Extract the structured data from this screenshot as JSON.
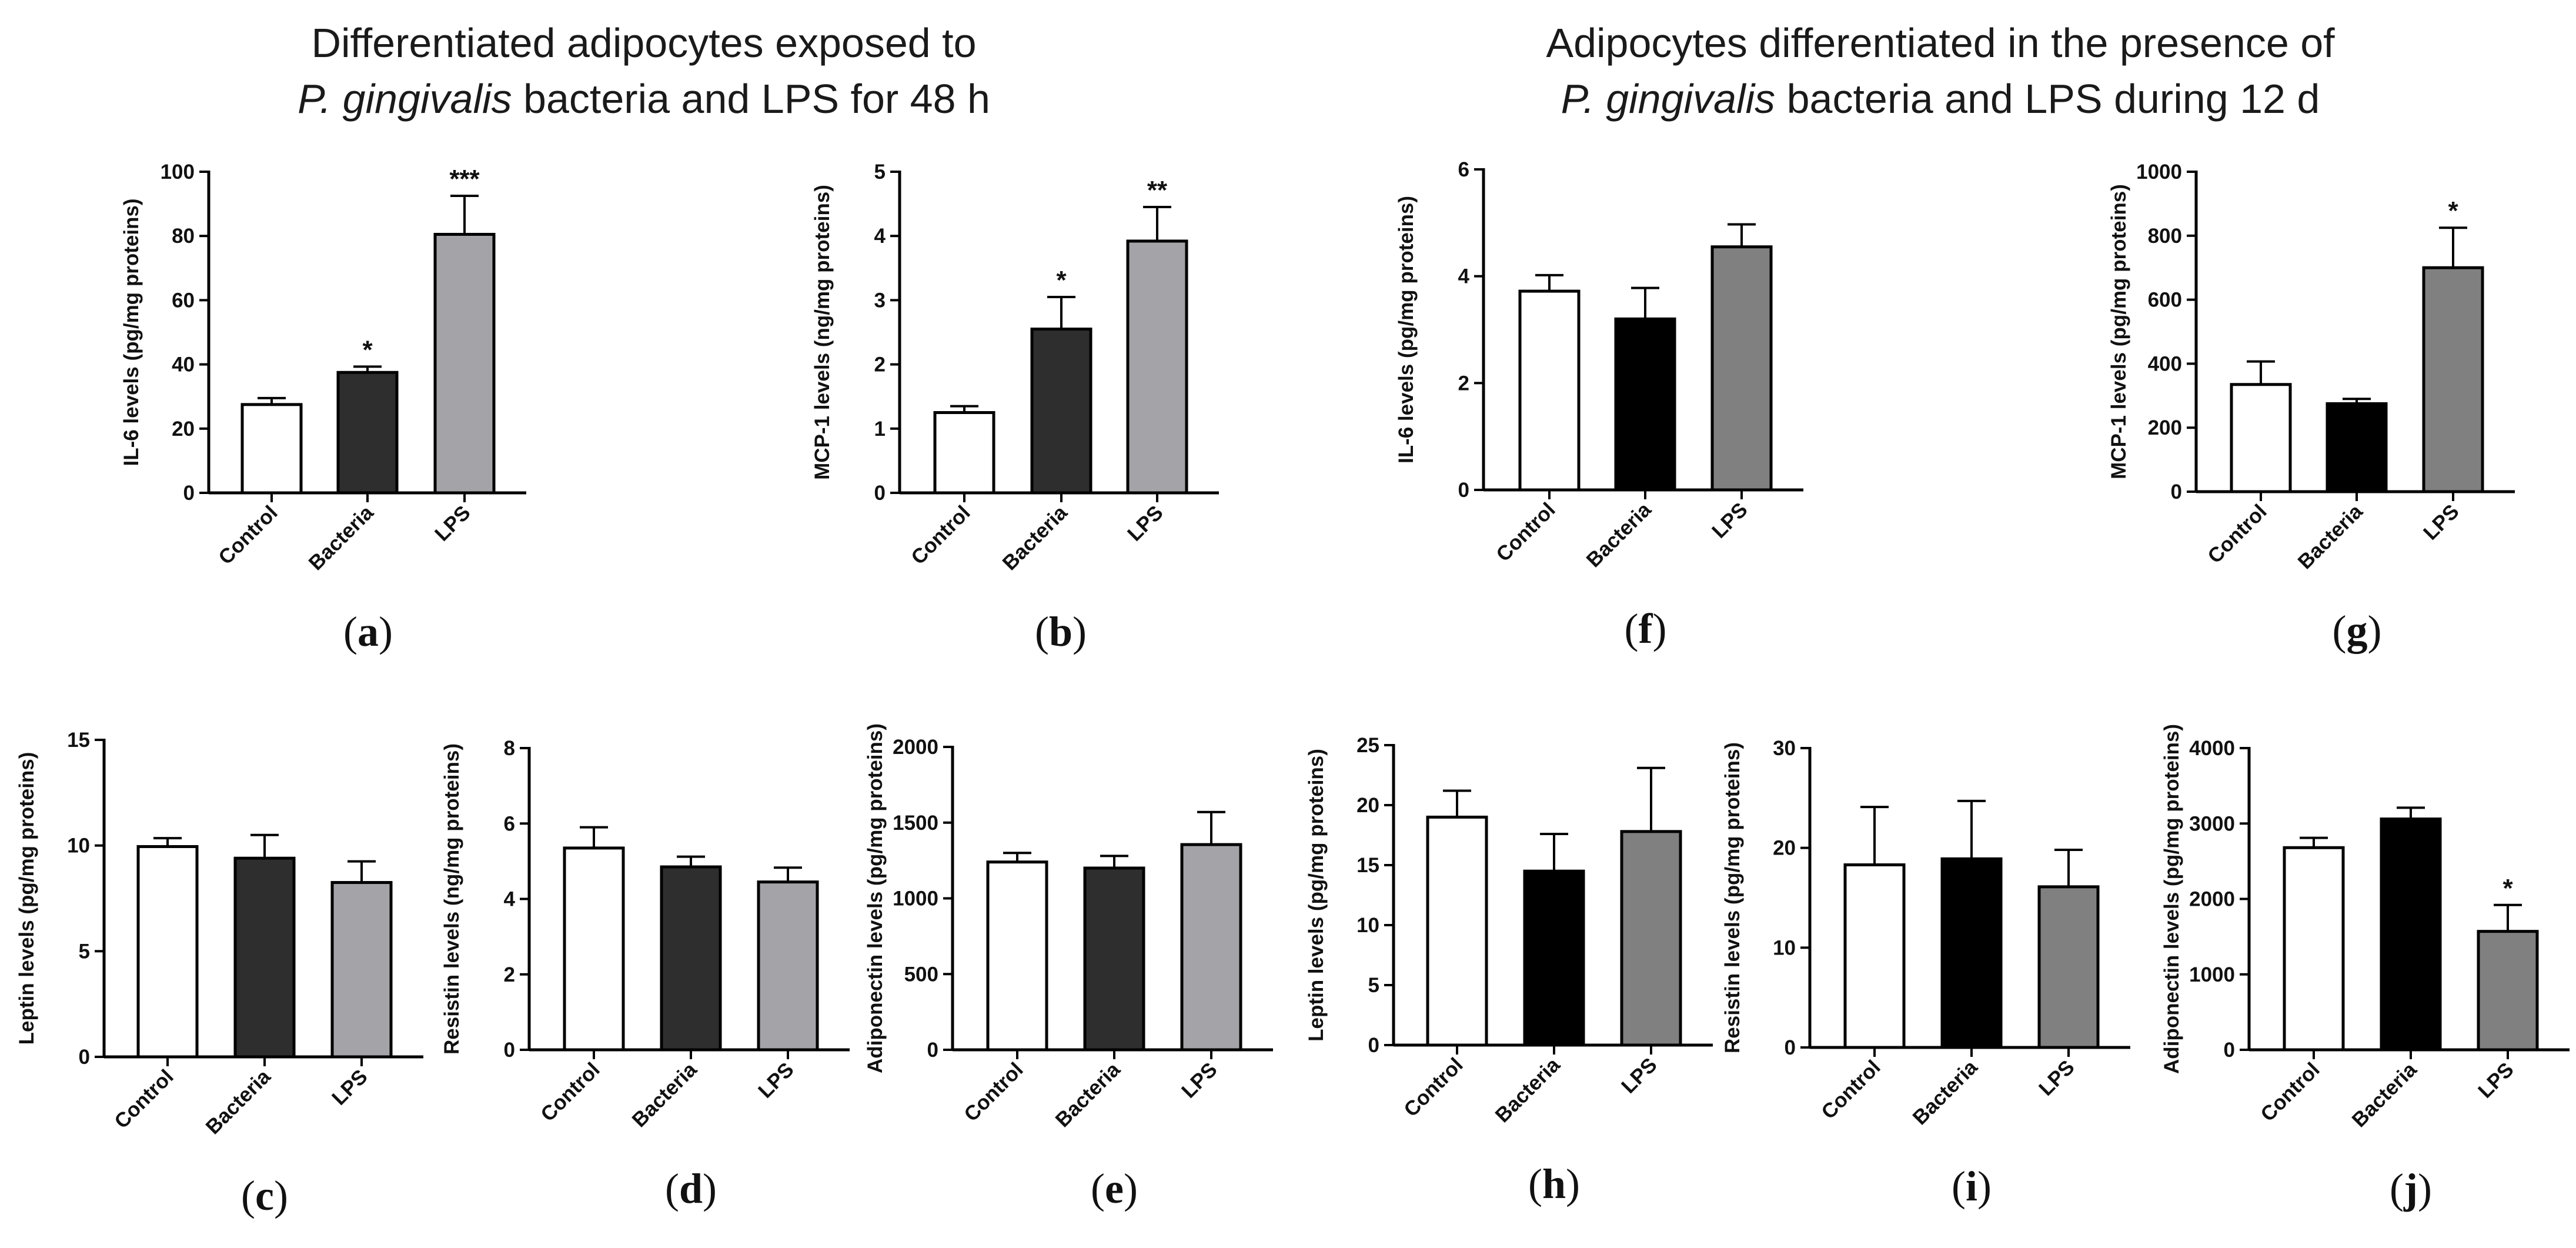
{
  "headings": [
    {
      "line1": "Differentiated adipocytes exposed to",
      "line2_italic": "P. gingivalis",
      "line2_rest": " bacteria and LPS for 48 h"
    },
    {
      "line1": "Adipocytes differentiated in the presence of",
      "line2_italic": "P. gingivalis",
      "line2_rest": " bacteria and LPS during 12 d"
    }
  ],
  "colors": {
    "group1": [
      "#ffffff",
      "#2e2e2e",
      "#a4a4a8"
    ],
    "group2": [
      "#ffffff",
      "#000000",
      "#808080"
    ],
    "axis": "#000000"
  },
  "chart_data": [
    {
      "id": "a",
      "type": "bar",
      "ylabel": "IL-6 levels (pg/mg proteins)",
      "categories": [
        "Control",
        "Bacteria",
        "LPS"
      ],
      "values": [
        27.5,
        37.5,
        80.5
      ],
      "errors": [
        2,
        1.8,
        12
      ],
      "ylim": [
        0,
        100
      ],
      "yticks": [
        0,
        20,
        40,
        60,
        80,
        100
      ],
      "annotations": [
        "",
        "*",
        "***"
      ],
      "panel_label": "a",
      "color_set": "group1"
    },
    {
      "id": "b",
      "type": "bar",
      "ylabel": "MCP-1 levels (ng/mg proteins)",
      "categories": [
        "Control",
        "Bacteria",
        "LPS"
      ],
      "values": [
        1.25,
        2.55,
        3.92
      ],
      "errors": [
        0.1,
        0.5,
        0.53
      ],
      "ylim": [
        0,
        5
      ],
      "yticks": [
        0,
        1,
        2,
        3,
        4,
        5
      ],
      "annotations": [
        "",
        "*",
        "**"
      ],
      "panel_label": "b",
      "color_set": "group1"
    },
    {
      "id": "f",
      "type": "bar",
      "ylabel": "IL-6 levels (pg/mg proteins)",
      "categories": [
        "Control",
        "Bacteria",
        "LPS"
      ],
      "values": [
        3.72,
        3.2,
        4.55
      ],
      "errors": [
        0.3,
        0.58,
        0.42
      ],
      "ylim": [
        0,
        6
      ],
      "yticks": [
        0,
        2,
        4,
        6
      ],
      "annotations": [
        "",
        "",
        ""
      ],
      "panel_label": "f",
      "color_set": "group2"
    },
    {
      "id": "g",
      "type": "bar",
      "ylabel": "MCP-1 levels (pg/mg proteins)",
      "categories": [
        "Control",
        "Bacteria",
        "LPS"
      ],
      "values": [
        335,
        275,
        700
      ],
      "errors": [
        72,
        15,
        125
      ],
      "ylim": [
        0,
        1000
      ],
      "yticks": [
        0,
        200,
        400,
        600,
        800,
        1000
      ],
      "annotations": [
        "",
        "",
        "*"
      ],
      "panel_label": "g",
      "color_set": "group2"
    },
    {
      "id": "c",
      "type": "bar",
      "ylabel": "Leptin levels (pg/mg proteins)",
      "categories": [
        "Control",
        "Bacteria",
        "LPS"
      ],
      "values": [
        9.95,
        9.4,
        8.25
      ],
      "errors": [
        0.4,
        1.1,
        1.0
      ],
      "ylim": [
        0,
        15
      ],
      "yticks": [
        0,
        5,
        10,
        15
      ],
      "annotations": [
        "",
        "",
        ""
      ],
      "panel_label": "c",
      "color_set": "group1"
    },
    {
      "id": "d",
      "type": "bar",
      "ylabel": "Resistin levels (ng/mg proteins)",
      "categories": [
        "Control",
        "Bacteria",
        "LPS"
      ],
      "values": [
        5.35,
        4.85,
        4.45
      ],
      "errors": [
        0.55,
        0.27,
        0.38
      ],
      "ylim": [
        0,
        8
      ],
      "yticks": [
        0,
        2,
        4,
        6,
        8
      ],
      "annotations": [
        "",
        "",
        ""
      ],
      "panel_label": "d",
      "color_set": "group1"
    },
    {
      "id": "e",
      "type": "bar",
      "ylabel": "Adiponectin levels (pg/mg proteins)",
      "categories": [
        "Control",
        "Bacteria",
        "LPS"
      ],
      "values": [
        1240,
        1200,
        1355
      ],
      "errors": [
        60,
        80,
        215
      ],
      "ylim": [
        0,
        2000
      ],
      "yticks": [
        0,
        500,
        1000,
        1500,
        2000
      ],
      "annotations": [
        "",
        "",
        ""
      ],
      "panel_label": "e",
      "color_set": "group1"
    },
    {
      "id": "h",
      "type": "bar",
      "ylabel": "Leptin levels (pg/mg proteins)",
      "categories": [
        "Control",
        "Bacteria",
        "LPS"
      ],
      "values": [
        19,
        14.5,
        17.8
      ],
      "errors": [
        2.2,
        3.1,
        5.3
      ],
      "ylim": [
        0,
        25
      ],
      "yticks": [
        0,
        5,
        10,
        15,
        20,
        25
      ],
      "annotations": [
        "",
        "",
        ""
      ],
      "panel_label": "h",
      "color_set": "group2"
    },
    {
      "id": "i",
      "type": "bar",
      "ylabel": "Resistin levels (pg/mg proteins)",
      "categories": [
        "Control",
        "Bacteria",
        "LPS"
      ],
      "values": [
        18.3,
        18.9,
        16.1
      ],
      "errors": [
        5.8,
        5.8,
        3.7
      ],
      "ylim": [
        0,
        30
      ],
      "yticks": [
        0,
        10,
        20,
        30
      ],
      "annotations": [
        "",
        "",
        ""
      ],
      "panel_label": "i",
      "color_set": "group2"
    },
    {
      "id": "j",
      "type": "bar",
      "ylabel": "Adiponectin levels (pg/mg proteins)",
      "categories": [
        "Control",
        "Bacteria",
        "LPS"
      ],
      "values": [
        2680,
        3060,
        1570
      ],
      "errors": [
        130,
        150,
        350
      ],
      "ylim": [
        0,
        4000
      ],
      "yticks": [
        0,
        1000,
        2000,
        3000,
        4000
      ],
      "annotations": [
        "",
        "",
        "*"
      ],
      "panel_label": "j",
      "color_set": "group2"
    }
  ]
}
